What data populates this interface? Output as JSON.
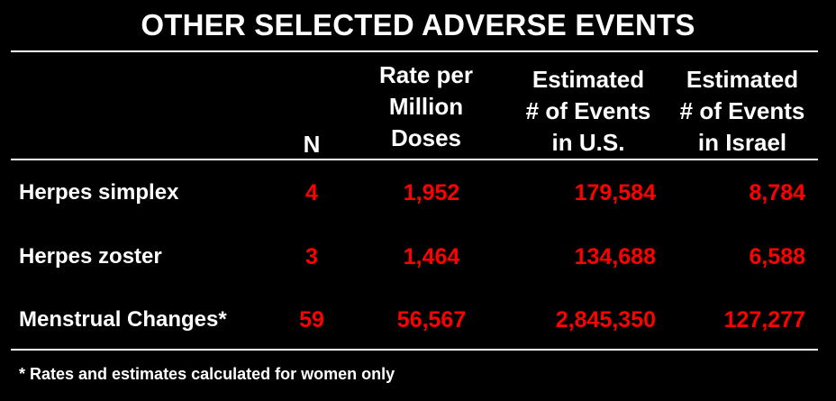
{
  "title": "OTHER SELECTED ADVERSE EVENTS",
  "headers": {
    "n": "N",
    "rate": "Rate per\nMillion\nDoses",
    "us": "Estimated\n# of Events\nin U.S.",
    "israel": "Estimated\n# of Events\nin Israel"
  },
  "rows": [
    {
      "label": "Herpes simplex",
      "n": "4",
      "rate": "1,952",
      "us": "179,584",
      "israel": "8,784"
    },
    {
      "label": "Herpes zoster",
      "n": "3",
      "rate": "1,464",
      "us": "134,688",
      "israel": "6,588"
    },
    {
      "label": "Menstrual Changes*",
      "n": "59",
      "rate": "56,567",
      "us": "2,845,350",
      "israel": "127,277"
    }
  ],
  "footnote": "* Rates and estimates calculated for women only",
  "colors": {
    "background": "#000000",
    "text": "#ffffff",
    "values": "#ff0000"
  }
}
